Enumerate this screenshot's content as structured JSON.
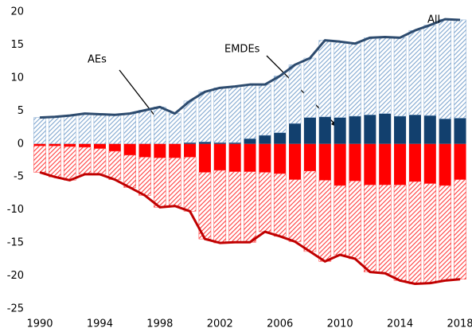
{
  "chart_data": {
    "type": "bar",
    "categories": [
      "1990",
      "1991",
      "1992",
      "1993",
      "1994",
      "1995",
      "1996",
      "1997",
      "1998",
      "1999",
      "2000",
      "2001",
      "2002",
      "2003",
      "2004",
      "2005",
      "2006",
      "2007",
      "2008",
      "2009",
      "2010",
      "2011",
      "2012",
      "2013",
      "2014",
      "2015",
      "2016",
      "2017",
      "2018"
    ],
    "xticks": [
      0,
      4,
      8,
      12,
      16,
      20,
      24,
      28
    ],
    "series": [
      {
        "color": "#12406e",
        "hatch": false,
        "values": [
          0,
          0,
          0,
          0,
          0,
          0,
          0,
          0,
          0,
          0,
          0.2,
          0.3,
          0.2,
          0.2,
          0.8,
          1.3,
          1.7,
          3.1,
          4.0,
          4.1,
          4.0,
          4.2,
          4.4,
          4.6,
          4.2,
          4.4,
          4.3,
          3.8,
          3.9
        ]
      },
      {
        "color": "#7fa6cf",
        "hatch": true,
        "values": [
          4.0,
          4.1,
          4.3,
          4.6,
          4.5,
          4.4,
          4.6,
          5.1,
          5.6,
          4.6,
          6.3,
          7.6,
          8.3,
          8.5,
          8.2,
          7.7,
          8.6,
          8.9,
          9.0,
          11.6,
          11.5,
          11.0,
          11.7,
          11.6,
          11.9,
          12.8,
          13.7,
          15.1,
          14.9
        ]
      },
      {
        "color": "#ff0000",
        "hatch": false,
        "values": [
          -0.3,
          -0.3,
          -0.4,
          -0.5,
          -0.7,
          -1.1,
          -1.7,
          -2.0,
          -2.1,
          -2.1,
          -2.0,
          -4.3,
          -4.0,
          -4.2,
          -4.2,
          -4.3,
          -4.5,
          -5.4,
          -4.1,
          -5.5,
          -6.3,
          -5.6,
          -6.2,
          -6.2,
          -6.2,
          -5.7,
          -6.0,
          -6.3,
          -5.4
        ]
      },
      {
        "color": "#ff3b3b",
        "hatch": true,
        "values": [
          -4.0,
          -4.7,
          -5.1,
          -4.1,
          -3.9,
          -4.3,
          -4.9,
          -5.8,
          -7.5,
          -7.3,
          -8.2,
          -10.1,
          -11.0,
          -10.7,
          -10.7,
          -9.0,
          -9.5,
          -9.4,
          -12.2,
          -12.3,
          -10.5,
          -11.8,
          -13.2,
          -13.4,
          -14.5,
          -15.5,
          -15.1,
          -14.4,
          -15.1
        ]
      }
    ],
    "lines": [
      {
        "color": "#2d4b6e",
        "values": [
          4.0,
          4.1,
          4.3,
          4.6,
          4.5,
          4.4,
          4.6,
          5.1,
          5.6,
          4.6,
          6.5,
          7.9,
          8.5,
          8.7,
          9.0,
          9.0,
          10.3,
          12.0,
          13.0,
          15.7,
          15.5,
          15.2,
          16.1,
          16.2,
          16.1,
          17.2,
          18.0,
          18.9,
          18.8
        ]
      },
      {
        "color": "#c00000",
        "values": [
          -4.3,
          -5.0,
          -5.5,
          -4.6,
          -4.6,
          -5.4,
          -6.6,
          -7.8,
          -9.6,
          -9.4,
          -10.2,
          -14.4,
          -15.0,
          -14.9,
          -14.9,
          -13.3,
          -14.0,
          -14.8,
          -16.3,
          -17.8,
          -16.8,
          -17.4,
          -19.4,
          -19.6,
          -20.7,
          -21.2,
          -21.1,
          -20.7,
          -20.5
        ]
      }
    ],
    "annotations": [
      "AEs",
      "EMDEs",
      "All"
    ],
    "ylim": [
      -25,
      20
    ],
    "yticks": [
      -25,
      -20,
      -15,
      -10,
      -5,
      0,
      5,
      10,
      15,
      20
    ]
  }
}
